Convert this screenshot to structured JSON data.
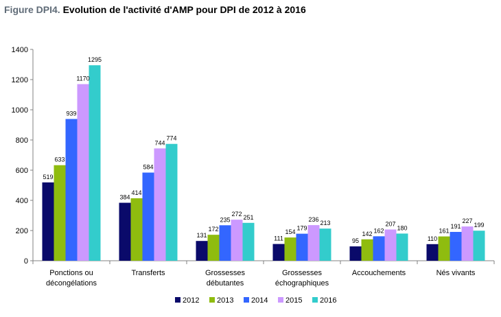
{
  "figure": {
    "prefix": "Figure DPI4.",
    "title": "Evolution de l'activité d'AMP pour DPI de 2012 à 2016"
  },
  "chart_data": {
    "type": "bar",
    "categories": [
      [
        "Ponctions ou",
        "décongélations"
      ],
      [
        "Transferts"
      ],
      [
        "Grossesses",
        "débutantes"
      ],
      [
        "Grossesses",
        "échographiques"
      ],
      [
        "Accouchements"
      ],
      [
        "Nés vivants"
      ]
    ],
    "series": [
      {
        "name": "2012",
        "color": "#0a0a6a",
        "values": [
          519,
          384,
          131,
          111,
          95,
          110
        ]
      },
      {
        "name": "2013",
        "color": "#8fbc0f",
        "values": [
          633,
          414,
          172,
          154,
          142,
          161
        ]
      },
      {
        "name": "2014",
        "color": "#3366ff",
        "values": [
          939,
          584,
          235,
          179,
          162,
          191
        ]
      },
      {
        "name": "2015",
        "color": "#cc99ff",
        "values": [
          1170,
          744,
          272,
          236,
          207,
          227
        ]
      },
      {
        "name": "2016",
        "color": "#33cccc",
        "values": [
          1295,
          774,
          251,
          213,
          180,
          199
        ]
      }
    ],
    "ylim": [
      0,
      1400
    ],
    "yticks": [
      0,
      200,
      400,
      600,
      800,
      1000,
      1200,
      1400
    ],
    "grid": false,
    "legend": "bottom"
  }
}
